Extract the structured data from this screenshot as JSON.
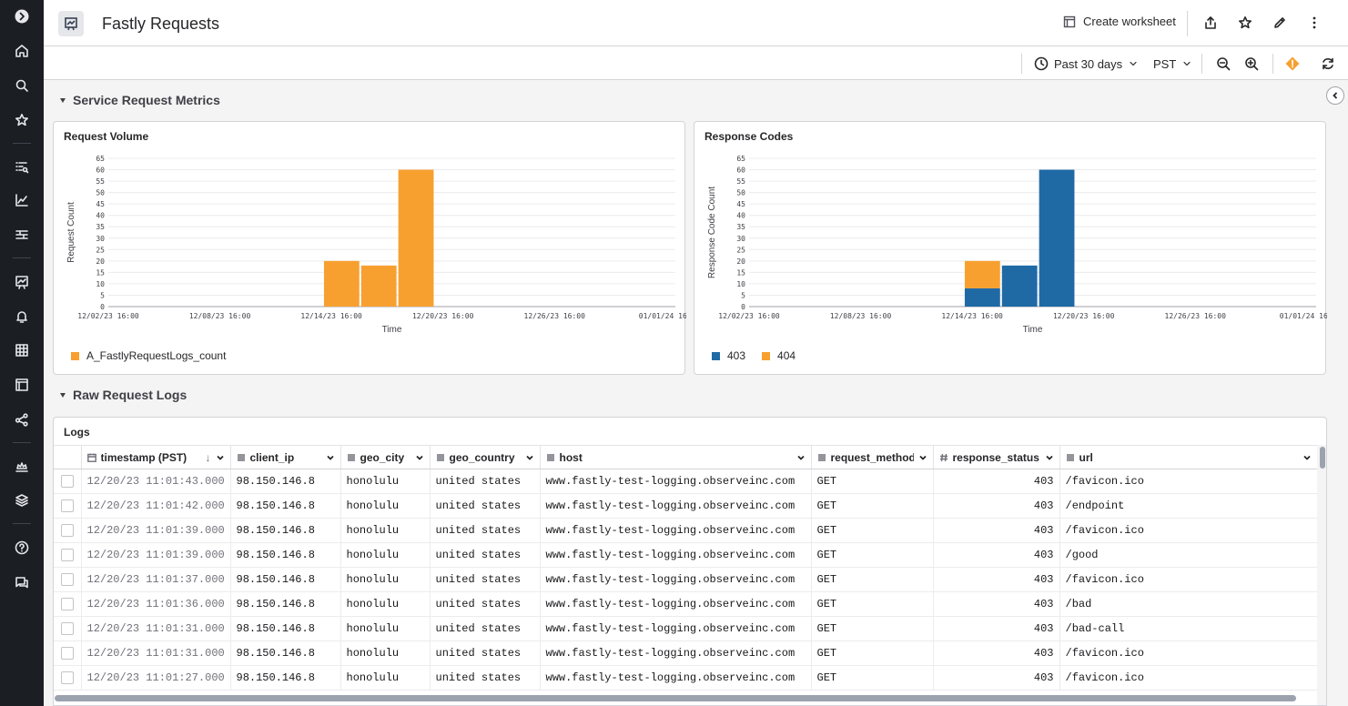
{
  "header": {
    "title": "Fastly Requests",
    "create_worksheet": "Create worksheet",
    "icons": [
      "share-icon",
      "star-icon",
      "edit-icon",
      "more-icon"
    ]
  },
  "toolbar": {
    "time_range": "Past 30 days",
    "timezone": "PST"
  },
  "sections": {
    "metrics": "Service Request Metrics",
    "logs": "Raw Request Logs"
  },
  "charts": {
    "volume_title": "Request Volume",
    "codes_title": "Response Codes"
  },
  "chart_data": [
    {
      "type": "bar",
      "title": "Request Volume",
      "xlabel": "Time",
      "ylabel": "Request Count",
      "ylim": [
        0,
        65
      ],
      "y_ticks": [
        0,
        5,
        10,
        15,
        20,
        25,
        30,
        35,
        40,
        45,
        50,
        55,
        60,
        65
      ],
      "x_ticks": [
        "12/02/23 16:00",
        "12/08/23 16:00",
        "12/14/23 16:00",
        "12/20/23 16:00",
        "12/26/23 16:00",
        "01/01/24 16"
      ],
      "x_range": [
        0,
        30.5
      ],
      "bars": [
        {
          "start": 11.6,
          "end": 13.5,
          "value": 20
        },
        {
          "start": 13.6,
          "end": 15.5,
          "value": 18
        },
        {
          "start": 15.6,
          "end": 17.5,
          "value": 60
        }
      ],
      "series": [
        {
          "name": "A_FastlyRequestLogs_count",
          "color": "#f7a030",
          "values": [
            20,
            18,
            60
          ]
        }
      ],
      "grid": true,
      "legend": "bottom-left"
    },
    {
      "type": "bar",
      "stacked": true,
      "title": "Response Codes",
      "xlabel": "Time",
      "ylabel": "Response Code Count",
      "ylim": [
        0,
        65
      ],
      "y_ticks": [
        0,
        5,
        10,
        15,
        20,
        25,
        30,
        35,
        40,
        45,
        50,
        55,
        60,
        65
      ],
      "x_ticks": [
        "12/02/23 16:00",
        "12/08/23 16:00",
        "12/14/23 16:00",
        "12/20/23 16:00",
        "12/26/23 16:00",
        "01/01/24 16"
      ],
      "x_range": [
        0,
        30.5
      ],
      "bars": [
        {
          "start": 11.6,
          "end": 13.5
        },
        {
          "start": 13.6,
          "end": 15.5
        },
        {
          "start": 15.6,
          "end": 17.5
        }
      ],
      "series": [
        {
          "name": "403",
          "color": "#1f6aa5",
          "values": [
            8,
            18,
            60
          ]
        },
        {
          "name": "404",
          "color": "#f7a030",
          "values": [
            12,
            0,
            0
          ]
        }
      ],
      "grid": true,
      "legend": "bottom-left"
    }
  ],
  "logs": {
    "title": "Logs",
    "columns": [
      {
        "label": "timestamp (PST)",
        "icon": "calendar-icon",
        "sort": "↓"
      },
      {
        "label": "client_ip",
        "icon": "text-icon"
      },
      {
        "label": "geo_city",
        "icon": "text-icon"
      },
      {
        "label": "geo_country",
        "icon": "text-icon"
      },
      {
        "label": "host",
        "icon": "text-icon"
      },
      {
        "label": "request_method",
        "icon": "text-icon"
      },
      {
        "label": "response_status",
        "icon": "hash-icon"
      },
      {
        "label": "url",
        "icon": "text-icon"
      }
    ],
    "rows": [
      [
        "12/20/23 11:01:43.000",
        "98.150.146.8",
        "honolulu",
        "united states",
        "www.fastly-test-logging.observeinc.com",
        "GET",
        "403",
        "/favicon.ico"
      ],
      [
        "12/20/23 11:01:42.000",
        "98.150.146.8",
        "honolulu",
        "united states",
        "www.fastly-test-logging.observeinc.com",
        "GET",
        "403",
        "/endpoint"
      ],
      [
        "12/20/23 11:01:39.000",
        "98.150.146.8",
        "honolulu",
        "united states",
        "www.fastly-test-logging.observeinc.com",
        "GET",
        "403",
        "/favicon.ico"
      ],
      [
        "12/20/23 11:01:39.000",
        "98.150.146.8",
        "honolulu",
        "united states",
        "www.fastly-test-logging.observeinc.com",
        "GET",
        "403",
        "/good"
      ],
      [
        "12/20/23 11:01:37.000",
        "98.150.146.8",
        "honolulu",
        "united states",
        "www.fastly-test-logging.observeinc.com",
        "GET",
        "403",
        "/favicon.ico"
      ],
      [
        "12/20/23 11:01:36.000",
        "98.150.146.8",
        "honolulu",
        "united states",
        "www.fastly-test-logging.observeinc.com",
        "GET",
        "403",
        "/bad"
      ],
      [
        "12/20/23 11:01:31.000",
        "98.150.146.8",
        "honolulu",
        "united states",
        "www.fastly-test-logging.observeinc.com",
        "GET",
        "403",
        "/bad-call"
      ],
      [
        "12/20/23 11:01:31.000",
        "98.150.146.8",
        "honolulu",
        "united states",
        "www.fastly-test-logging.observeinc.com",
        "GET",
        "403",
        "/favicon.ico"
      ],
      [
        "12/20/23 11:01:27.000",
        "98.150.146.8",
        "honolulu",
        "united states",
        "www.fastly-test-logging.observeinc.com",
        "GET",
        "403",
        "/favicon.ico"
      ]
    ]
  },
  "rail": {
    "icons": [
      "logo-icon",
      "home-icon",
      "search-icon",
      "star-icon",
      "explorer-icon",
      "metrics-icon",
      "logs-icon",
      "dashboard-icon",
      "alerts-icon",
      "datasets-icon",
      "worksheets-icon",
      "graph-icon",
      "apps-icon",
      "layers-icon",
      "help-icon",
      "chat-icon"
    ]
  }
}
